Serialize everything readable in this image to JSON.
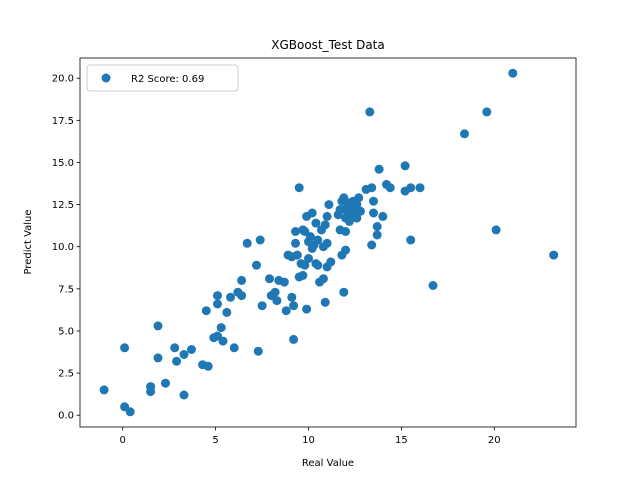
{
  "chart_data": {
    "type": "scatter",
    "title": "XGBoost_Test Data",
    "xlabel": "Real Value",
    "ylabel": "Predict Value",
    "xlim": [
      -2.3,
      24.4
    ],
    "ylim": [
      -0.7,
      21.2
    ],
    "xticks": [
      0,
      5,
      10,
      15,
      20
    ],
    "xtick_labels": [
      "0",
      "5",
      "10",
      "15",
      "20"
    ],
    "yticks": [
      0.0,
      2.5,
      5.0,
      7.5,
      10.0,
      12.5,
      15.0,
      17.5,
      20.0
    ],
    "ytick_labels": [
      "0.0",
      "2.5",
      "5.0",
      "7.5",
      "10.0",
      "12.5",
      "15.0",
      "17.5",
      "20.0"
    ],
    "grid": false,
    "legend_position": "top-left",
    "series": [
      {
        "name": "R2 Score: 0.69",
        "color": "#1f77b4",
        "points": [
          [
            -1.0,
            1.5
          ],
          [
            0.1,
            0.5
          ],
          [
            0.4,
            0.2
          ],
          [
            0.1,
            4.0
          ],
          [
            1.5,
            1.4
          ],
          [
            1.5,
            1.7
          ],
          [
            1.9,
            3.4
          ],
          [
            1.9,
            5.3
          ],
          [
            2.3,
            1.9
          ],
          [
            2.8,
            4.0
          ],
          [
            2.9,
            3.2
          ],
          [
            3.3,
            1.2
          ],
          [
            3.3,
            3.6
          ],
          [
            3.7,
            3.9
          ],
          [
            4.3,
            3.0
          ],
          [
            4.6,
            2.9
          ],
          [
            4.5,
            6.2
          ],
          [
            4.9,
            4.6
          ],
          [
            5.1,
            4.7
          ],
          [
            5.1,
            6.6
          ],
          [
            5.1,
            7.1
          ],
          [
            5.3,
            5.2
          ],
          [
            5.4,
            4.4
          ],
          [
            5.6,
            6.1
          ],
          [
            5.8,
            7.0
          ],
          [
            6.0,
            4.0
          ],
          [
            6.2,
            7.3
          ],
          [
            6.4,
            7.1
          ],
          [
            6.4,
            8.0
          ],
          [
            6.7,
            10.2
          ],
          [
            7.2,
            8.9
          ],
          [
            7.3,
            3.8
          ],
          [
            7.4,
            10.4
          ],
          [
            7.5,
            6.5
          ],
          [
            7.9,
            8.1
          ],
          [
            8.0,
            7.1
          ],
          [
            8.2,
            7.3
          ],
          [
            8.3,
            6.8
          ],
          [
            8.4,
            8.0
          ],
          [
            8.7,
            7.9
          ],
          [
            8.8,
            6.2
          ],
          [
            8.9,
            9.5
          ],
          [
            9.1,
            9.4
          ],
          [
            9.1,
            7.0
          ],
          [
            9.2,
            6.5
          ],
          [
            9.2,
            4.5
          ],
          [
            9.3,
            10.2
          ],
          [
            9.3,
            10.9
          ],
          [
            9.4,
            9.5
          ],
          [
            9.5,
            13.5
          ],
          [
            9.5,
            8.2
          ],
          [
            9.6,
            9.0
          ],
          [
            9.7,
            8.3
          ],
          [
            9.7,
            11.0
          ],
          [
            9.8,
            10.9
          ],
          [
            9.8,
            8.9
          ],
          [
            9.9,
            11.8
          ],
          [
            9.9,
            6.3
          ],
          [
            10.0,
            9.3
          ],
          [
            10.0,
            10.3
          ],
          [
            10.1,
            10.6
          ],
          [
            10.2,
            12.0
          ],
          [
            10.2,
            9.9
          ],
          [
            10.3,
            10.1
          ],
          [
            10.4,
            11.4
          ],
          [
            10.4,
            9.0
          ],
          [
            10.5,
            10.4
          ],
          [
            10.5,
            8.9
          ],
          [
            10.6,
            7.9
          ],
          [
            10.7,
            11.0
          ],
          [
            10.8,
            10.0
          ],
          [
            10.8,
            8.1
          ],
          [
            10.9,
            11.3
          ],
          [
            10.9,
            6.7
          ],
          [
            11.0,
            10.2
          ],
          [
            11.0,
            11.8
          ],
          [
            11.1,
            12.5
          ],
          [
            11.0,
            8.8
          ],
          [
            11.2,
            9.1
          ],
          [
            11.6,
            11.9
          ],
          [
            11.7,
            12.2
          ],
          [
            11.7,
            11.0
          ],
          [
            11.8,
            12.7
          ],
          [
            11.8,
            9.5
          ],
          [
            11.9,
            12.9
          ],
          [
            11.9,
            7.3
          ],
          [
            12.0,
            11.7
          ],
          [
            12.0,
            10.9
          ],
          [
            12.0,
            9.8
          ],
          [
            12.1,
            12.4
          ],
          [
            12.1,
            12.0
          ],
          [
            12.2,
            12.6
          ],
          [
            12.2,
            11.5
          ],
          [
            12.3,
            12.0
          ],
          [
            12.3,
            12.3
          ],
          [
            12.4,
            11.9
          ],
          [
            12.4,
            12.7
          ],
          [
            12.5,
            12.2
          ],
          [
            12.6,
            12.5
          ],
          [
            12.6,
            11.7
          ],
          [
            12.7,
            12.9
          ],
          [
            12.8,
            12.1
          ],
          [
            13.1,
            13.4
          ],
          [
            13.3,
            18.0
          ],
          [
            13.4,
            13.5
          ],
          [
            13.4,
            10.1
          ],
          [
            13.5,
            12.7
          ],
          [
            13.5,
            12.0
          ],
          [
            13.7,
            11.2
          ],
          [
            13.7,
            10.7
          ],
          [
            13.8,
            14.6
          ],
          [
            14.0,
            11.8
          ],
          [
            14.2,
            13.7
          ],
          [
            14.4,
            13.5
          ],
          [
            15.2,
            14.8
          ],
          [
            15.2,
            13.3
          ],
          [
            15.5,
            13.5
          ],
          [
            15.5,
            10.4
          ],
          [
            16.0,
            13.5
          ],
          [
            16.7,
            7.7
          ],
          [
            18.4,
            16.7
          ],
          [
            19.6,
            18.0
          ],
          [
            20.1,
            11.0
          ],
          [
            21.0,
            20.3
          ],
          [
            23.2,
            9.5
          ]
        ]
      }
    ]
  }
}
